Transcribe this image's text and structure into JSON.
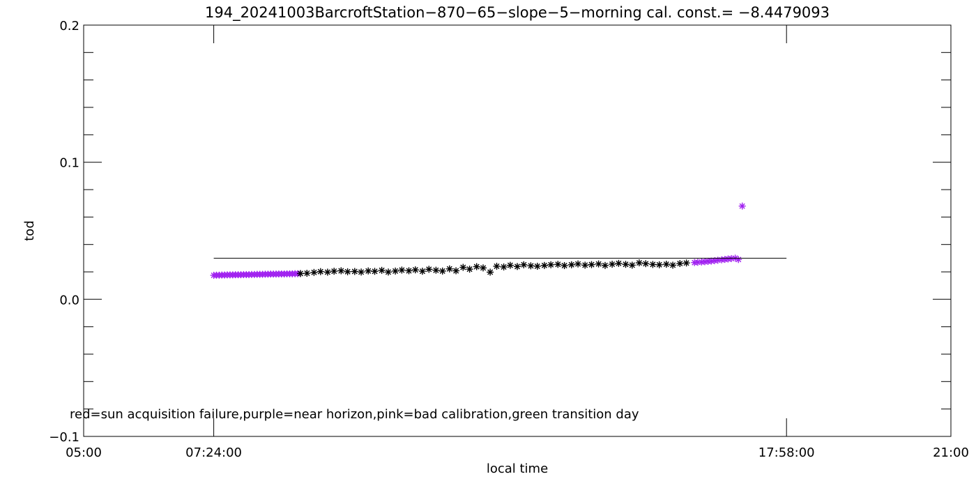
{
  "chart_data": {
    "type": "scatter",
    "title": "194_20241003BarcroftStation−870−65−slope−5−morning cal. const.= −8.4479093",
    "xlabel": "local time",
    "ylabel": "tod",
    "xlim_hours": [
      5,
      21
    ],
    "ylim": [
      -0.1,
      0.2
    ],
    "x_ticks": [
      {
        "value": 5.0,
        "label": "05:00"
      },
      {
        "value": 7.4,
        "label": "07:24:00"
      },
      {
        "value": 17.9667,
        "label": "17:58:00"
      },
      {
        "value": 21.0,
        "label": "21:00"
      }
    ],
    "y_ticks": [
      {
        "value": 0.2,
        "label": "0.2"
      },
      {
        "value": 0.1,
        "label": "0.1"
      },
      {
        "value": 0.0,
        "label": "0.0"
      },
      {
        "value": -0.1,
        "label": "−0.1"
      }
    ],
    "annotation": "red=sun acquisition failure,purple=near horizon,pink=bad calibration,green transition day",
    "reference_line": {
      "x_start": 7.4,
      "x_end": 17.9667,
      "y": 0.03
    },
    "colors": {
      "normal": "#000000",
      "near_horizon": "#a020f0"
    },
    "series": [
      {
        "category": "near_horizon",
        "x": [
          7.4,
          7.45,
          7.5,
          7.55,
          7.6,
          7.65,
          7.7,
          7.75,
          7.8,
          7.85,
          7.9,
          7.95,
          8.0,
          8.05,
          8.1,
          8.15,
          8.2,
          8.25,
          8.3,
          8.35,
          8.4,
          8.45,
          8.5,
          8.55,
          8.6,
          8.65,
          8.7,
          8.75,
          8.8,
          8.85,
          8.9,
          8.95,
          16.27,
          16.33,
          16.4,
          16.46,
          16.52,
          16.58,
          16.64,
          16.7,
          16.77,
          16.83,
          16.89,
          16.95,
          17.02,
          17.08
        ],
        "y": [
          0.0175,
          0.0176,
          0.0176,
          0.0177,
          0.0177,
          0.0178,
          0.0178,
          0.0178,
          0.0179,
          0.0179,
          0.0179,
          0.018,
          0.018,
          0.018,
          0.0181,
          0.0181,
          0.0182,
          0.0182,
          0.0182,
          0.0183,
          0.0183,
          0.0184,
          0.0184,
          0.0184,
          0.0185,
          0.0185,
          0.0185,
          0.0186,
          0.0186,
          0.0186,
          0.0187,
          0.0187,
          0.0268,
          0.027,
          0.0272,
          0.0274,
          0.0277,
          0.0279,
          0.0282,
          0.0285,
          0.0288,
          0.0291,
          0.0294,
          0.0297,
          0.03,
          0.029
        ]
      },
      {
        "category": "near_horizon",
        "x": [
          17.15
        ],
        "y": 0.068
      },
      {
        "category": "normal",
        "x": [
          9.0,
          9.12,
          9.25,
          9.37,
          9.5,
          9.62,
          9.75,
          9.87,
          10.0,
          10.12,
          10.25,
          10.37,
          10.5,
          10.62,
          10.75,
          10.87,
          11.0,
          11.12,
          11.25,
          11.37,
          11.5,
          11.62,
          11.75,
          11.87,
          12.0,
          12.12,
          12.25,
          12.37,
          12.5,
          12.62,
          12.75,
          12.87,
          13.0,
          13.12,
          13.25,
          13.37,
          13.5,
          13.62,
          13.75,
          13.87,
          14.0,
          14.12,
          14.25,
          14.37,
          14.5,
          14.62,
          14.75,
          14.87,
          15.0,
          15.12,
          15.25,
          15.37,
          15.5,
          15.62,
          15.75,
          15.87,
          16.0,
          16.12
        ],
        "y": [
          0.0188,
          0.019,
          0.0196,
          0.0202,
          0.0198,
          0.0205,
          0.0208,
          0.0201,
          0.0203,
          0.0199,
          0.0207,
          0.0204,
          0.0211,
          0.0199,
          0.0206,
          0.0213,
          0.0208,
          0.0215,
          0.0205,
          0.0219,
          0.0212,
          0.0206,
          0.0222,
          0.0208,
          0.0233,
          0.022,
          0.0238,
          0.0229,
          0.0198,
          0.0241,
          0.0236,
          0.0248,
          0.0239,
          0.0252,
          0.0244,
          0.0241,
          0.0247,
          0.0252,
          0.0255,
          0.0246,
          0.0252,
          0.0258,
          0.0249,
          0.0253,
          0.0258,
          0.0247,
          0.0256,
          0.0262,
          0.0255,
          0.0249,
          0.0266,
          0.026,
          0.0254,
          0.0252,
          0.0256,
          0.0249,
          0.0261,
          0.0265
        ]
      }
    ]
  }
}
